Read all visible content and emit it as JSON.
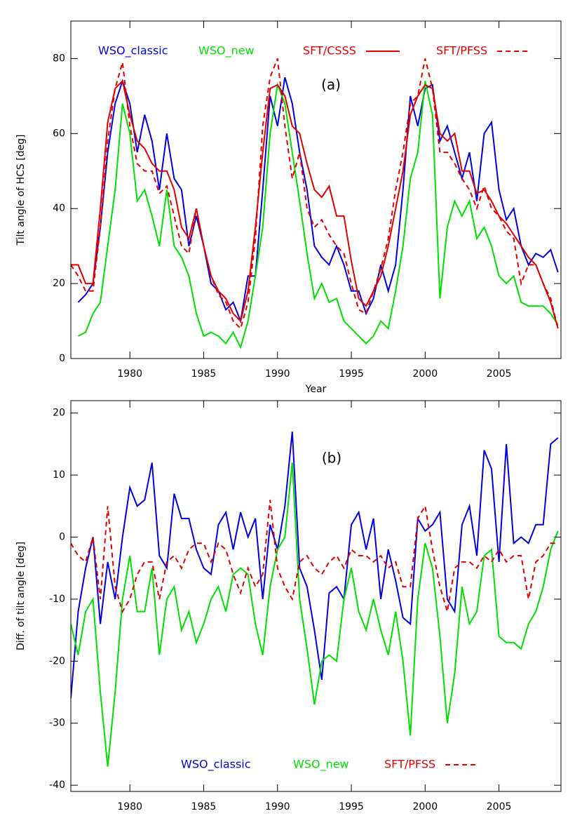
{
  "chart_data": [
    {
      "type": "line",
      "annotation": "(a)",
      "x_label": "Year",
      "y_label": "Tilt angle of HCS [deg]",
      "xlim": [
        1976,
        2009.2
      ],
      "xticks": [
        1980,
        1985,
        1990,
        1995,
        2000,
        2005
      ],
      "ylim": [
        0,
        90
      ],
      "yticks": [
        0,
        20,
        40,
        60,
        80
      ],
      "x": [
        1976,
        1976.5,
        1977,
        1977.5,
        1978,
        1978.5,
        1979,
        1979.5,
        1980,
        1980.5,
        1981,
        1981.5,
        1982,
        1982.5,
        1983,
        1983.5,
        1984,
        1984.5,
        1985,
        1985.5,
        1986,
        1986.5,
        1987,
        1987.5,
        1988,
        1988.5,
        1989,
        1989.5,
        1990,
        1990.5,
        1991,
        1991.5,
        1992,
        1992.5,
        1993,
        1993.5,
        1994,
        1994.5,
        1995,
        1995.5,
        1996,
        1996.5,
        1997,
        1997.5,
        1998,
        1998.5,
        1999,
        1999.5,
        2000,
        2000.5,
        2001,
        2001.5,
        2002,
        2002.5,
        2003,
        2003.5,
        2004,
        2004.5,
        2005,
        2005.5,
        2006,
        2006.5,
        2007,
        2007.5,
        2008,
        2008.5,
        2009
      ],
      "series": [
        {
          "name": "WSO_classic",
          "color": "#0000e0",
          "linestyle": "solid",
          "values": [
            null,
            15,
            17,
            20,
            35,
            55,
            68,
            74,
            68,
            55,
            65,
            58,
            45,
            60,
            48,
            45,
            30,
            38,
            30,
            20,
            18,
            13,
            15,
            10,
            22,
            22,
            45,
            70,
            62,
            75,
            68,
            55,
            45,
            30,
            27,
            25,
            30,
            25,
            18,
            18,
            12,
            16,
            25,
            18,
            25,
            45,
            70,
            62,
            72,
            73,
            58,
            62,
            55,
            48,
            55,
            42,
            60,
            63,
            45,
            37,
            40,
            30,
            25,
            28,
            27,
            29,
            23
          ]
        },
        {
          "name": "WSO_new",
          "color": "#00e000",
          "linestyle": "solid",
          "values": [
            null,
            6,
            7,
            12,
            15,
            30,
            45,
            68,
            60,
            42,
            45,
            38,
            30,
            45,
            30,
            27,
            22,
            12,
            6,
            7,
            6,
            4,
            7,
            3,
            10,
            22,
            35,
            60,
            73,
            68,
            55,
            42,
            28,
            16,
            20,
            15,
            16,
            10,
            8,
            6,
            4,
            6,
            10,
            8,
            18,
            30,
            48,
            55,
            74,
            65,
            16,
            35,
            42,
            38,
            42,
            32,
            35,
            30,
            22,
            20,
            22,
            15,
            14,
            14,
            14,
            12,
            9
          ]
        },
        {
          "name": "SFT/CSSS",
          "color": "#e00000",
          "linestyle": "solid",
          "values": [
            25,
            25,
            20,
            20,
            40,
            63,
            72,
            74,
            65,
            58,
            56,
            52,
            50,
            50,
            45,
            35,
            32,
            40,
            30,
            22,
            18,
            16,
            12,
            10,
            18,
            35,
            55,
            72,
            73,
            70,
            62,
            60,
            52,
            45,
            43,
            46,
            38,
            38,
            26,
            16,
            14,
            18,
            22,
            30,
            40,
            50,
            65,
            70,
            73,
            72,
            60,
            58,
            60,
            50,
            50,
            44,
            45,
            42,
            38,
            36,
            33,
            30,
            27,
            25,
            20,
            15,
            8
          ]
        },
        {
          "name": "SFT/PFSS",
          "color": "#e00000",
          "linestyle": "dashed",
          "values": [
            25,
            22,
            18,
            18,
            35,
            58,
            72,
            79,
            62,
            52,
            50,
            50,
            44,
            46,
            38,
            30,
            28,
            40,
            30,
            22,
            17,
            15,
            10,
            8,
            15,
            32,
            62,
            75,
            80,
            62,
            48,
            55,
            40,
            35,
            37,
            33,
            30,
            28,
            20,
            13,
            12,
            18,
            24,
            32,
            45,
            55,
            68,
            70,
            80,
            72,
            55,
            55,
            52,
            48,
            45,
            40,
            46,
            40,
            38,
            34,
            32,
            20,
            25,
            25,
            20,
            16,
            8
          ]
        }
      ]
    },
    {
      "type": "line",
      "annotation": "(b)",
      "x_label": "Year",
      "y_label": "Diff. of tilt angle [deg]",
      "xlim": [
        1976,
        2009.2
      ],
      "xticks": [
        1980,
        1985,
        1990,
        1995,
        2000,
        2005
      ],
      "ylim": [
        -41,
        22
      ],
      "yticks": [
        -40,
        -30,
        -20,
        -10,
        0,
        10,
        20
      ],
      "x": [
        1976,
        1976.5,
        1977,
        1977.5,
        1978,
        1978.5,
        1979,
        1979.5,
        1980,
        1980.5,
        1981,
        1981.5,
        1982,
        1982.5,
        1983,
        1983.5,
        1984,
        1984.5,
        1985,
        1985.5,
        1986,
        1986.5,
        1987,
        1987.5,
        1988,
        1988.5,
        1989,
        1989.5,
        1990,
        1990.5,
        1991,
        1991.5,
        1992,
        1992.5,
        1993,
        1993.5,
        1994,
        1994.5,
        1995,
        1995.5,
        1996,
        1996.5,
        1997,
        1997.5,
        1998,
        1998.5,
        1999,
        1999.5,
        2000,
        2000.5,
        2001,
        2001.5,
        2002,
        2002.5,
        2003,
        2003.5,
        2004,
        2004.5,
        2005,
        2005.5,
        2006,
        2006.5,
        2007,
        2007.5,
        2008,
        2008.5,
        2009
      ],
      "series": [
        {
          "name": "WSO_classic",
          "color": "#0000e0",
          "linestyle": "solid",
          "values": [
            -26,
            -12,
            -5,
            0,
            -14,
            -4,
            -10,
            0,
            8,
            5,
            6,
            12,
            -3,
            -5,
            7,
            3,
            3,
            -2,
            -5,
            -6,
            2,
            4,
            -2,
            4,
            0,
            3,
            -10,
            2,
            -2,
            5,
            17,
            -5,
            -8,
            -15,
            -23,
            -9,
            -8,
            -10,
            2,
            4,
            -2,
            3,
            -10,
            -2,
            -7,
            -13,
            -14,
            3,
            1,
            2,
            4,
            -10,
            -12,
            2,
            5,
            -3,
            14,
            11,
            -4,
            15,
            -1,
            0,
            -1,
            2,
            2,
            15,
            16
          ]
        },
        {
          "name": "WSO_new",
          "color": "#00e000",
          "linestyle": "solid",
          "values": [
            -14,
            -19,
            -12,
            -10,
            -25,
            -37,
            -25,
            -10,
            -3,
            -12,
            -12,
            -5,
            -19,
            -10,
            -8,
            -15,
            -12,
            -17,
            -14,
            -10,
            -8,
            -12,
            -6,
            -5,
            -6,
            -14,
            -19,
            -8,
            -2,
            0,
            12,
            -10,
            -18,
            -27,
            -20,
            -19,
            -20,
            -10,
            -5,
            -12,
            -15,
            -10,
            -15,
            -19,
            -12,
            -20,
            -32,
            -10,
            -1,
            -5,
            -16,
            -30,
            -22,
            -8,
            -14,
            -12,
            -3,
            -2,
            -16,
            -17,
            -17,
            -18,
            -14,
            -12,
            -8,
            -2,
            1
          ]
        },
        {
          "name": "SFT/PFSS",
          "color": "#e00000",
          "linestyle": "dashed",
          "values": [
            -1,
            -3,
            -4,
            0,
            -10,
            5,
            -8,
            -12,
            -10,
            -6,
            -4,
            -4,
            -10,
            -4,
            -3,
            -5,
            -2,
            -1,
            -1,
            -4,
            -1,
            -2,
            -6,
            -9,
            -5,
            -8,
            -6,
            6,
            -5,
            -8,
            -10,
            -4,
            -3,
            -5,
            -6,
            -4,
            -3,
            -5,
            -2,
            -3,
            -3,
            -4,
            -3,
            -5,
            -4,
            -8,
            -8,
            3,
            5,
            -2,
            -8,
            -12,
            -5,
            -4,
            -4,
            -5,
            -3,
            -4,
            -2,
            -4,
            -3,
            -3,
            -10,
            -4,
            -3,
            -1,
            -1
          ]
        }
      ]
    }
  ]
}
